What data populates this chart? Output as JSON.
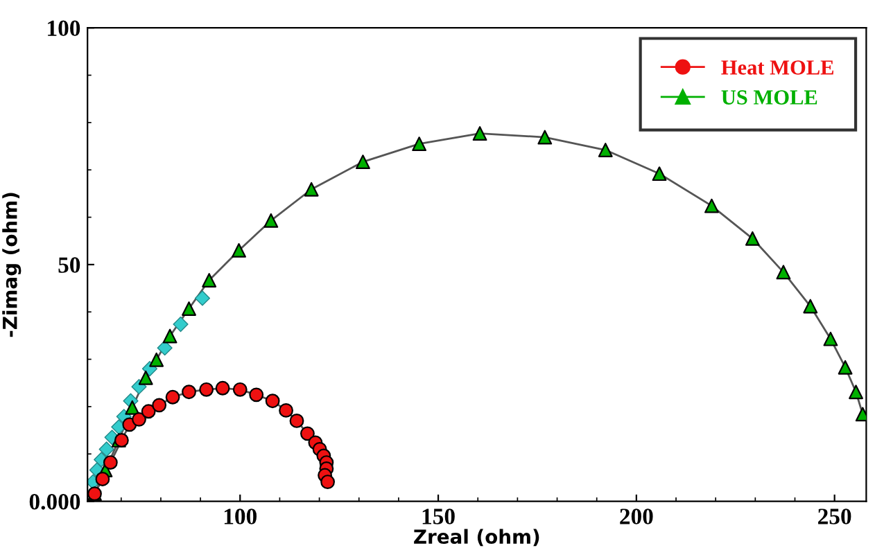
{
  "chart_data": {
    "type": "line",
    "xlabel": "Zreal (ohm)",
    "ylabel": "-Zimag (ohm)",
    "xlim": [
      61.5,
      258
    ],
    "ylim": [
      0,
      100
    ],
    "xticks": [
      100,
      150,
      200,
      250
    ],
    "yticks": [
      {
        "value": 0,
        "label": "0.000"
      },
      50,
      100
    ],
    "grid": false,
    "legend": "top right",
    "series": [
      {
        "name": "US MOLE",
        "color": "#00b000",
        "marker": "triangle",
        "x": [
          63.3,
          66.0,
          69.4,
          72.8,
          76.2,
          78.9,
          82.3,
          87.1,
          92.2,
          99.7,
          107.8,
          118.0,
          131.0,
          145.2,
          160.5,
          176.9,
          192.2,
          205.8,
          219.0,
          229.3,
          237.1,
          243.9,
          249.0,
          252.7,
          255.4,
          257.1
        ],
        "values": [
          1.6,
          6.6,
          12.9,
          19.8,
          26.1,
          29.9,
          34.9,
          40.7,
          46.7,
          53.0,
          59.3,
          65.9,
          71.7,
          75.5,
          77.7,
          76.9,
          74.2,
          69.2,
          62.4,
          55.5,
          48.4,
          41.2,
          34.3,
          28.3,
          23.1,
          18.4
        ]
      },
      {
        "type": "scatter",
        "color": "#33cccc",
        "marker": "diamond",
        "x": [
          90.5,
          85.0,
          81.0,
          77.2,
          74.5,
          72.4,
          70.7,
          69.4,
          67.7,
          66.3,
          65.0,
          63.9,
          62.9
        ],
        "values": [
          42.9,
          37.4,
          32.4,
          28.0,
          24.2,
          21.2,
          17.9,
          15.7,
          13.5,
          11.0,
          8.8,
          6.6,
          4.1
        ]
      },
      {
        "name": "Heat MOLE",
        "color": "#ee1111",
        "marker": "circle",
        "x": [
          63.3,
          65.3,
          67.3,
          70.1,
          72.1,
          74.5,
          76.9,
          79.6,
          83.0,
          87.1,
          91.5,
          95.6,
          100.0,
          104.1,
          108.2,
          111.6,
          114.3,
          117.0,
          119.0,
          120.1,
          121.1,
          121.8,
          121.8,
          121.4,
          122.1
        ],
        "values": [
          1.6,
          4.7,
          8.2,
          12.9,
          16.2,
          17.3,
          19.0,
          20.3,
          22.0,
          23.1,
          23.6,
          23.9,
          23.6,
          22.5,
          21.2,
          19.2,
          17.0,
          14.3,
          12.4,
          11.0,
          9.6,
          8.2,
          6.9,
          5.5,
          4.1
        ]
      }
    ]
  }
}
